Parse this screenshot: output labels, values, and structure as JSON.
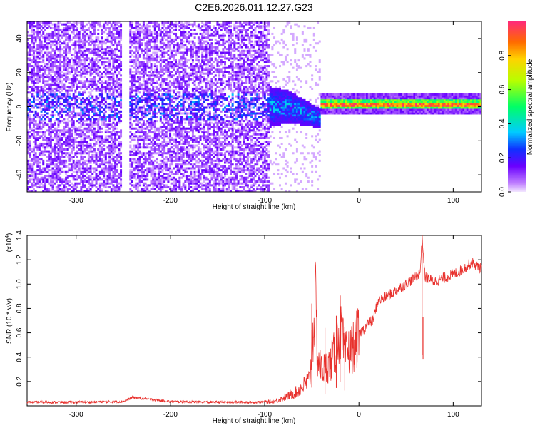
{
  "title": "C2E6.2026.011.12.27.G23",
  "chart_data": [
    {
      "type": "heatmap",
      "name": "spectrogram",
      "xlabel": "Height of straight line (km)",
      "ylabel": "Frequency (Hz)",
      "xlim": [
        -352,
        130
      ],
      "ylim": [
        -50,
        50
      ],
      "xticks": [
        -300,
        -200,
        -100,
        0,
        100
      ],
      "yticks": [
        -40,
        -20,
        0,
        20,
        40
      ],
      "colorbar": {
        "label": "Normalized spectral amplitude",
        "range": [
          0,
          1
        ],
        "ticks": [
          "0.0",
          "0.2",
          "0.4",
          "0.6",
          "0.8"
        ],
        "tick_values": [
          0.0,
          0.2,
          0.4,
          0.6,
          0.8
        ]
      },
      "signal_regions": [
        {
          "x_range": [
            -352,
            -95
          ],
          "description": "broadband noise, weak",
          "freq_span": [
            -50,
            50
          ],
          "amplitude": 0.1
        },
        {
          "x_range": [
            -95,
            -40
          ],
          "description": "scattered signal near carrier",
          "freq_span": [
            -10,
            10
          ],
          "amplitude": 0.35
        },
        {
          "x_range": [
            -40,
            130
          ],
          "description": "narrow carrier line",
          "freq_center": 1.5,
          "freq_halfwidth": 2,
          "amplitude": 0.9
        }
      ]
    },
    {
      "type": "line",
      "name": "snr",
      "xlabel": "Height of straight line (km)",
      "ylabel": "SNR (10 * v/v)",
      "multiplier_label": "(x10",
      "multiplier_exponent": "4",
      "multiplier_close": ")",
      "xlim": [
        -352,
        130
      ],
      "ylim": [
        0,
        14000
      ],
      "xticks": [
        -300,
        -200,
        -100,
        0,
        100
      ],
      "yticks": [
        0.2,
        0.4,
        0.6,
        0.8,
        1.0,
        1.2,
        1.4
      ],
      "ytick_labels": [
        "0.2",
        "0.4",
        "0.6",
        "0.8",
        "1.0",
        "1.2",
        "1.4"
      ],
      "color": "#e8312d",
      "series": [
        {
          "name": "SNR",
          "x": [
            -352,
            -300,
            -250,
            -240,
            -200,
            -150,
            -110,
            -90,
            -75,
            -65,
            -58,
            -52,
            -50,
            -46,
            -44,
            -40,
            -35,
            -30,
            -25,
            -20,
            -15,
            -10,
            -5,
            0,
            5,
            10,
            15,
            20,
            30,
            40,
            50,
            60,
            65,
            67,
            70,
            80,
            90,
            100,
            110,
            120,
            125,
            130
          ],
          "y": [
            300,
            300,
            350,
            700,
            350,
            300,
            300,
            350,
            800,
            1200,
            1700,
            2200,
            5000,
            8400,
            4000,
            3000,
            3200,
            3500,
            4500,
            6500,
            4200,
            4500,
            5000,
            5800,
            6300,
            6800,
            7000,
            8600,
            9000,
            9500,
            10000,
            10600,
            11000,
            14000,
            10600,
            10200,
            10500,
            10800,
            11200,
            11800,
            11500,
            11300
          ]
        }
      ],
      "spikes": [
        {
          "x": -50,
          "y": 8400
        },
        {
          "x": -36,
          "y": 6400
        },
        {
          "x": -24,
          "y": 7400
        },
        {
          "x": -20,
          "y": 9000
        },
        {
          "x": -15,
          "y": 6500
        },
        {
          "x": 67,
          "y": 14000
        },
        {
          "x": 68,
          "y": 7300
        }
      ]
    }
  ]
}
